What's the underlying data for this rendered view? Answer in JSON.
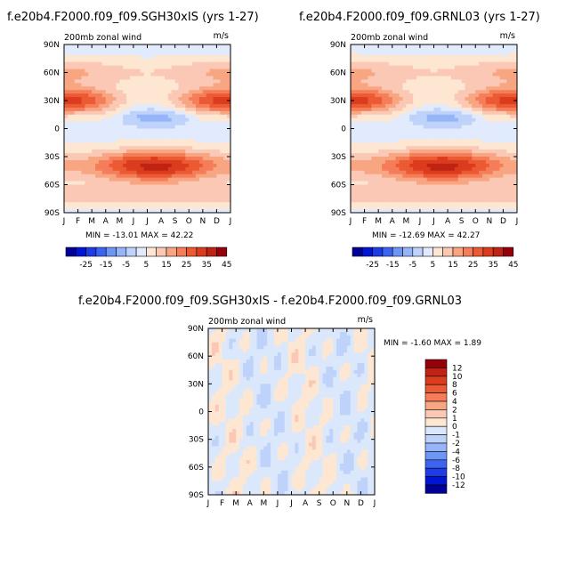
{
  "colors": {
    "ramp_main": [
      "#000096",
      "#0014d2",
      "#1e3ce6",
      "#3c64f0",
      "#6e96f5",
      "#96b4f8",
      "#bed2fa",
      "#e1ebfd",
      "#fde6d2",
      "#fac8b4",
      "#f8a582",
      "#f57d5a",
      "#eb5a32",
      "#dc3c1e",
      "#be2314",
      "#96000a"
    ],
    "ramp_diff": [
      "#000096",
      "#0014d2",
      "#1e3ce6",
      "#3c64f0",
      "#6e96f5",
      "#96b4f8",
      "#bed2fa",
      "#dbe8fc",
      "#fde6d2",
      "#fac8b4",
      "#f8a582",
      "#f57d5a",
      "#eb5a32",
      "#dc3c1e",
      "#be2314",
      "#96000a"
    ]
  },
  "chart_data": [
    {
      "type": "heatmap",
      "title": "f.e20b4.F2000.f09_f09.SGH30xIS (yrs 1-27)",
      "left_label": "200mb zonal wind",
      "right_label": "m/s",
      "x_ticks": [
        "J",
        "F",
        "M",
        "A",
        "M",
        "J",
        "J",
        "A",
        "S",
        "O",
        "N",
        "D",
        "J"
      ],
      "y_ticks": [
        "90N",
        "60N",
        "30N",
        "0",
        "30S",
        "60S",
        "90S"
      ],
      "ylim": [
        -90,
        90
      ],
      "stats": "MIN = -13.01  MAX =  42.22",
      "colorbar": {
        "orientation": "horizontal",
        "labels": [
          "-25",
          "-15",
          "-5",
          "5",
          "15",
          "25",
          "35",
          "45"
        ],
        "levels": [
          -35,
          -30,
          -25,
          -20,
          -15,
          -10,
          -5,
          0,
          5,
          10,
          15,
          20,
          25,
          30,
          35,
          40,
          45
        ]
      },
      "min": -13.01,
      "max": 42.22
    },
    {
      "type": "heatmap",
      "title": "f.e20b4.F2000.f09_f09.GRNL03 (yrs 1-27)",
      "left_label": "200mb zonal wind",
      "right_label": "m/s",
      "x_ticks": [
        "J",
        "F",
        "M",
        "A",
        "M",
        "J",
        "J",
        "A",
        "S",
        "O",
        "N",
        "D",
        "J"
      ],
      "y_ticks": [
        "90N",
        "60N",
        "30N",
        "0",
        "30S",
        "60S",
        "90S"
      ],
      "ylim": [
        -90,
        90
      ],
      "stats": "MIN = -12.69  MAX =  42.27",
      "colorbar": {
        "orientation": "horizontal",
        "labels": [
          "-25",
          "-15",
          "-5",
          "5",
          "15",
          "25",
          "35",
          "45"
        ],
        "levels": [
          -35,
          -30,
          -25,
          -20,
          -15,
          -10,
          -5,
          0,
          5,
          10,
          15,
          20,
          25,
          30,
          35,
          40,
          45
        ]
      },
      "min": -12.69,
      "max": 42.27
    },
    {
      "type": "heatmap",
      "title": "f.e20b4.F2000.f09_f09.SGH30xIS - f.e20b4.F2000.f09_f09.GRNL03",
      "left_label": "200mb zonal wind",
      "right_label": "m/s",
      "x_ticks": [
        "J",
        "F",
        "M",
        "A",
        "M",
        "J",
        "J",
        "A",
        "S",
        "O",
        "N",
        "D",
        "J"
      ],
      "y_ticks": [
        "90N",
        "60N",
        "30N",
        "0",
        "30S",
        "60S",
        "90S"
      ],
      "ylim": [
        -90,
        90
      ],
      "stats": "MIN =  -1.60 MAX =   1.89",
      "colorbar": {
        "orientation": "vertical",
        "labels": [
          "12",
          "10",
          "8",
          "6",
          "4",
          "2",
          "1",
          "0",
          "-1",
          "-2",
          "-4",
          "-6",
          "-8",
          "-10",
          "-12"
        ]
      },
      "min": -1.6,
      "max": 1.89
    }
  ]
}
